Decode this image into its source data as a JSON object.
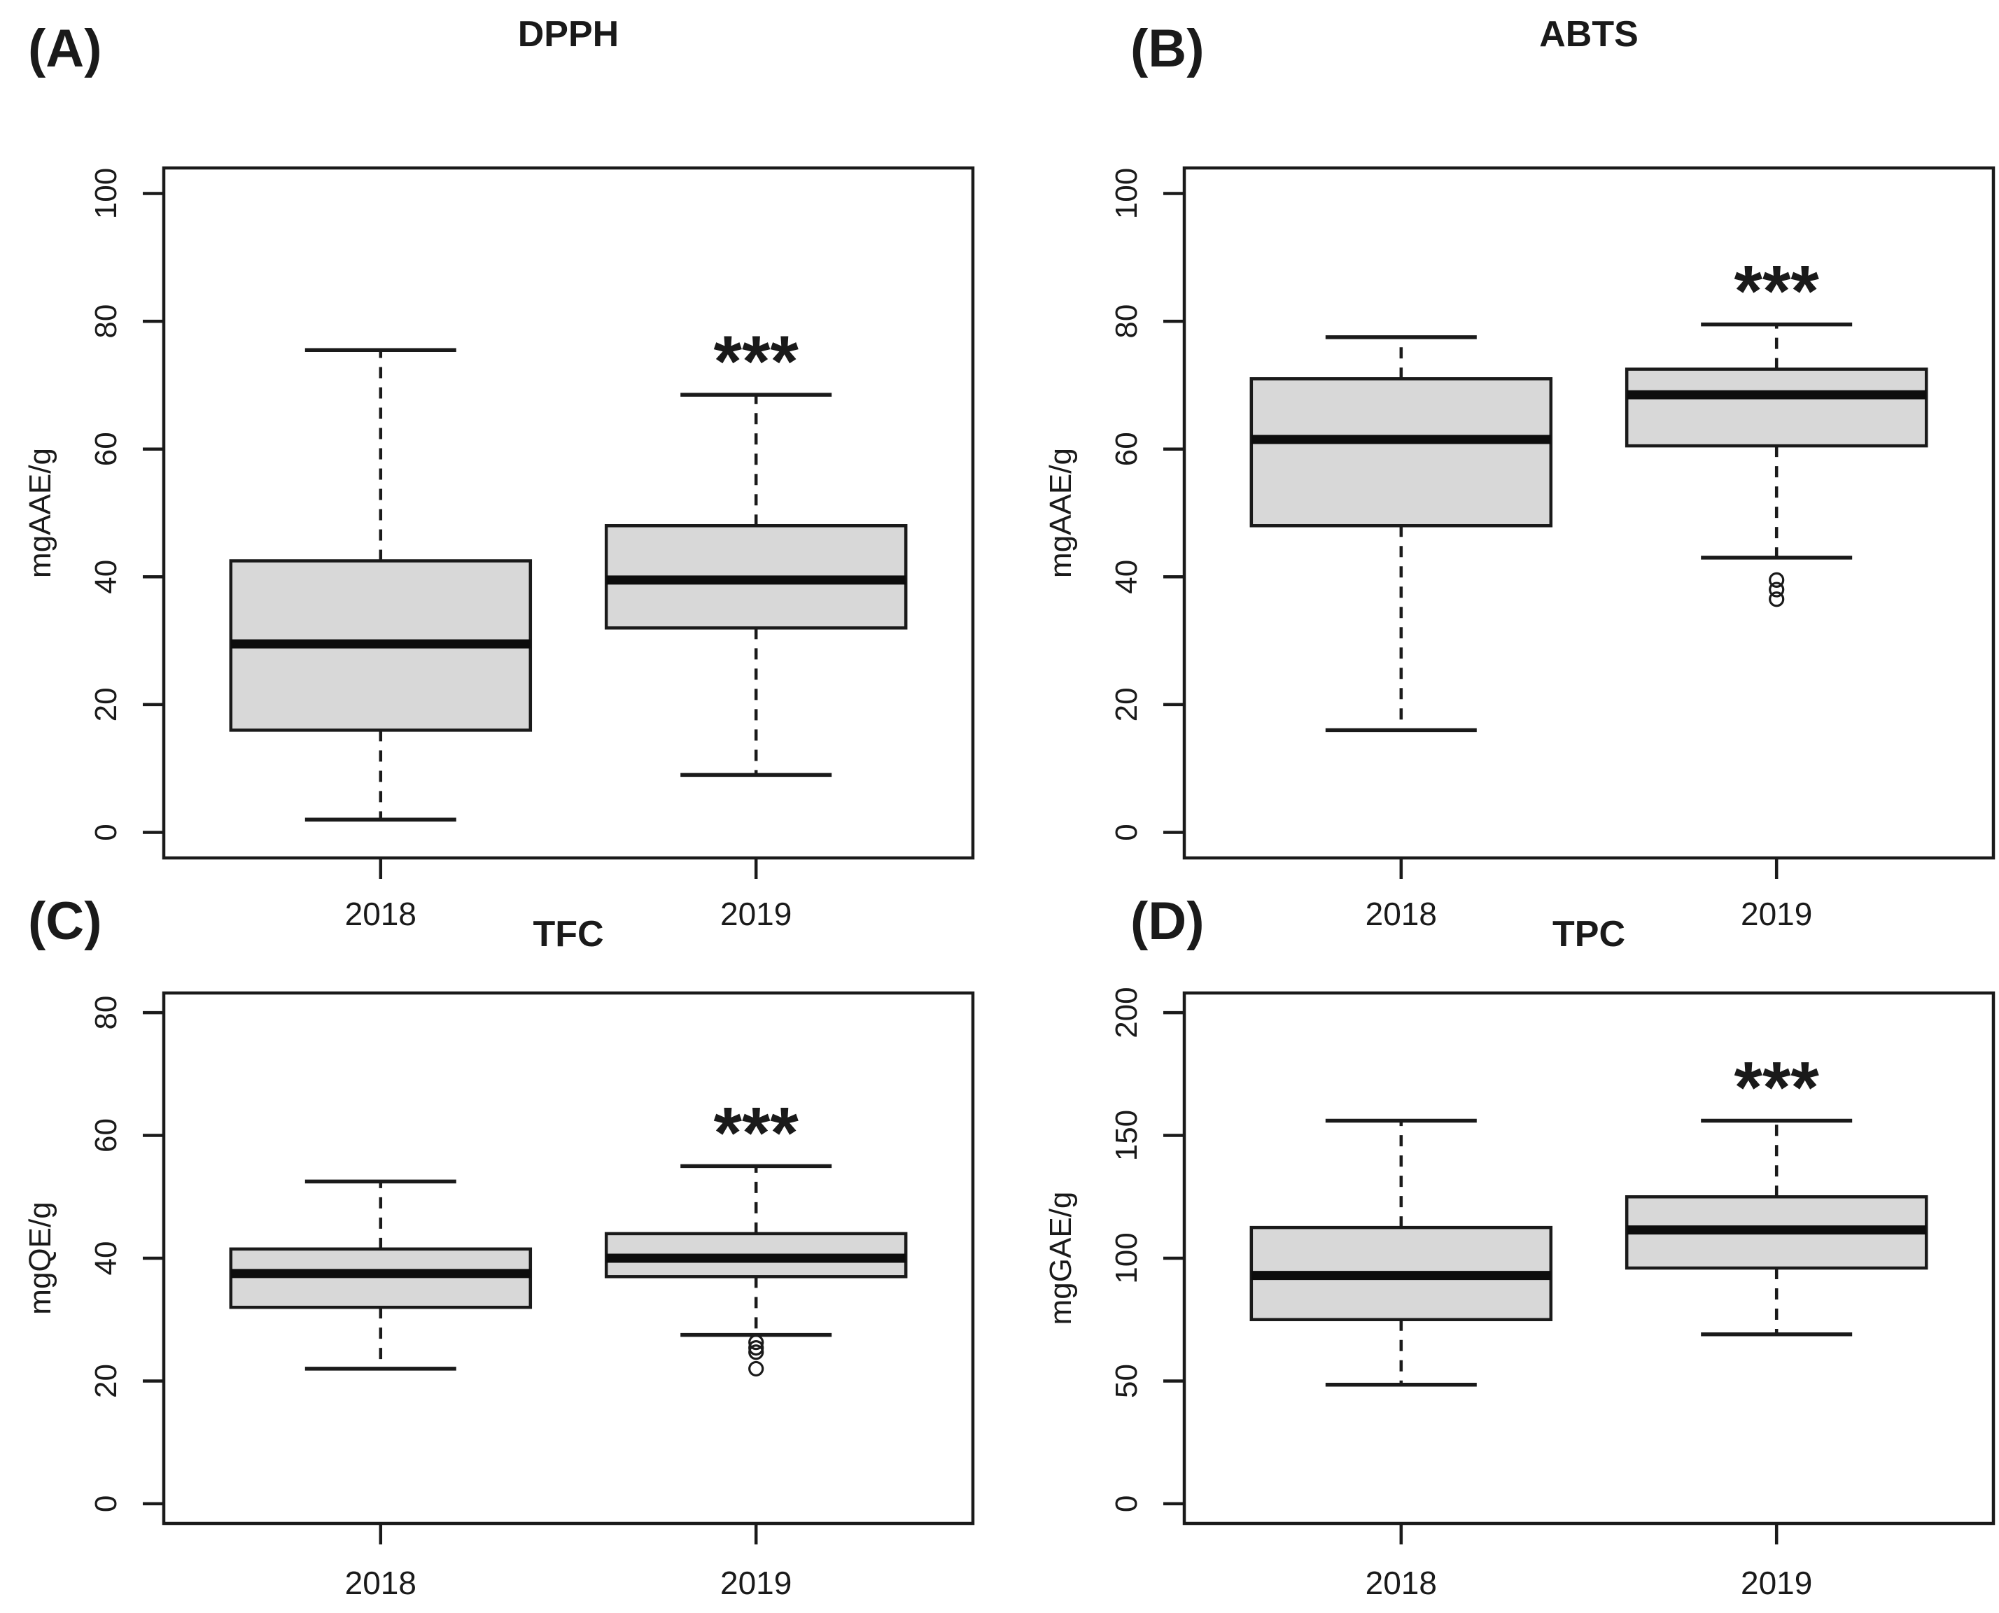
{
  "figure": {
    "description": "Four-panel boxplot figure comparing antioxidant measures between years 2018 and 2019",
    "colors": {
      "box_fill": "#d8d8d8",
      "line": "#1a1a1a",
      "median": "#0d0d0d",
      "text": "#1a1a1a",
      "background": "#ffffff"
    }
  },
  "chart_data": [
    {
      "type": "boxplot",
      "id": "A",
      "panel_label": "(A)",
      "title": "DPPH",
      "ylabel": "mgAAE/g",
      "ylim": [
        0,
        100
      ],
      "yticks": [
        0,
        20,
        40,
        60,
        80,
        100
      ],
      "categories": [
        "2018",
        "2019"
      ],
      "series": [
        {
          "category": "2018",
          "whisker_low": 2,
          "q1": 16,
          "median": 29.5,
          "q3": 42.5,
          "whisker_high": 75.5,
          "outliers": [],
          "significance": ""
        },
        {
          "category": "2019",
          "whisker_low": 9,
          "q1": 32,
          "median": 39.5,
          "q3": 48,
          "whisker_high": 68.5,
          "outliers": [],
          "significance": "***"
        }
      ],
      "grid": false,
      "legend": "none"
    },
    {
      "type": "boxplot",
      "id": "B",
      "panel_label": "(B)",
      "title": "ABTS",
      "ylabel": "mgAAE/g",
      "ylim": [
        0,
        100
      ],
      "yticks": [
        0,
        20,
        40,
        60,
        80,
        100
      ],
      "categories": [
        "2018",
        "2019"
      ],
      "series": [
        {
          "category": "2018",
          "whisker_low": 16,
          "q1": 48,
          "median": 61.5,
          "q3": 71,
          "whisker_high": 77.5,
          "outliers": [],
          "significance": ""
        },
        {
          "category": "2019",
          "whisker_low": 43,
          "q1": 60.5,
          "median": 68.5,
          "q3": 72.5,
          "whisker_high": 79.5,
          "outliers": [
            39.5,
            38,
            36.5
          ],
          "significance": "***"
        }
      ],
      "grid": false,
      "legend": "none"
    },
    {
      "type": "boxplot",
      "id": "C",
      "panel_label": "(C)",
      "title": "TFC",
      "ylabel": "mgQE/g",
      "ylim": [
        0,
        80
      ],
      "yticks": [
        0,
        20,
        40,
        60,
        80
      ],
      "categories": [
        "2018",
        "2019"
      ],
      "series": [
        {
          "category": "2018",
          "whisker_low": 22,
          "q1": 32,
          "median": 37.5,
          "q3": 41.5,
          "whisker_high": 52.5,
          "outliers": [],
          "significance": ""
        },
        {
          "category": "2019",
          "whisker_low": 27.5,
          "q1": 37,
          "median": 40,
          "q3": 44,
          "whisker_high": 55,
          "outliers": [
            26.3,
            25.4,
            24.7,
            22
          ],
          "significance": "***"
        }
      ],
      "grid": false,
      "legend": "none"
    },
    {
      "type": "boxplot",
      "id": "D",
      "panel_label": "(D)",
      "title": "TPC",
      "ylabel": "mgGAE/g",
      "ylim": [
        0,
        200
      ],
      "yticks": [
        0,
        50,
        100,
        150,
        200
      ],
      "categories": [
        "2018",
        "2019"
      ],
      "series": [
        {
          "category": "2018",
          "whisker_low": 48.5,
          "q1": 75,
          "median": 93,
          "q3": 112.5,
          "whisker_high": 156,
          "outliers": [],
          "significance": ""
        },
        {
          "category": "2019",
          "whisker_low": 69,
          "q1": 96,
          "median": 111.5,
          "q3": 125,
          "whisker_high": 156,
          "outliers": [],
          "significance": "***"
        }
      ],
      "grid": false,
      "legend": "none"
    }
  ]
}
